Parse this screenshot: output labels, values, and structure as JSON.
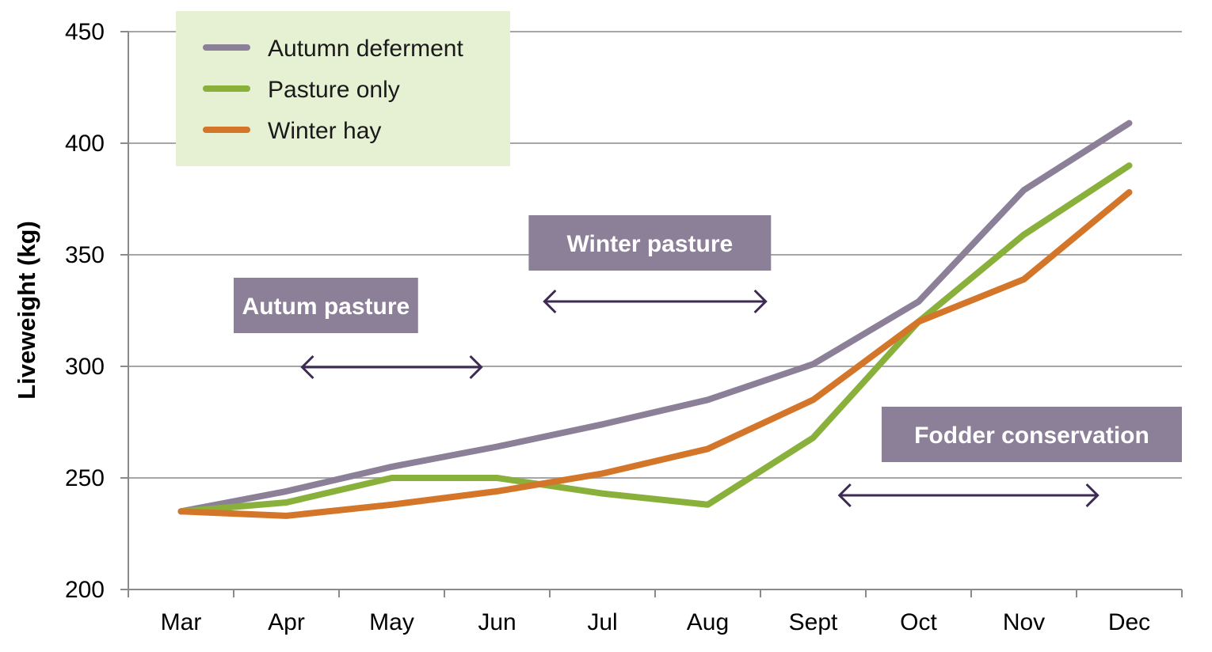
{
  "chart_data": {
    "type": "line",
    "title": "",
    "xlabel": "",
    "ylabel": "Liveweight (kg)",
    "ylim": [
      200,
      450
    ],
    "yticks": [
      200,
      250,
      300,
      350,
      400,
      450
    ],
    "categories": [
      "Mar",
      "Apr",
      "May",
      "Jun",
      "Jul",
      "Aug",
      "Sept",
      "Oct",
      "Nov",
      "Dec"
    ],
    "grid": true,
    "legend_position": "top-left",
    "series": [
      {
        "name": "Autumn deferment",
        "color": "#8c7f98",
        "values": [
          235,
          244,
          255,
          264,
          274,
          285,
          301,
          329,
          379,
          409
        ]
      },
      {
        "name": "Pasture only",
        "color": "#8ab03c",
        "values": [
          235,
          239,
          250,
          250,
          243,
          238,
          268,
          320,
          359,
          390
        ]
      },
      {
        "name": "Winter hay",
        "color": "#d4762a",
        "values": [
          235,
          233,
          238,
          244,
          252,
          263,
          285,
          320,
          339,
          378
        ]
      }
    ],
    "annotations": [
      {
        "label": "Autum pasture",
        "color": "#8c7f98",
        "from": "Apr",
        "to": "Jun"
      },
      {
        "label": "Winter pasture",
        "color": "#8c7f98",
        "from": "Jun",
        "to": "Aug"
      },
      {
        "label": "Fodder conservation",
        "color": "#8c7f98",
        "from": "Sept",
        "to": "Dec"
      }
    ],
    "legend_bg": "#e6f0d2",
    "arrow_color": "#3d2a55"
  }
}
